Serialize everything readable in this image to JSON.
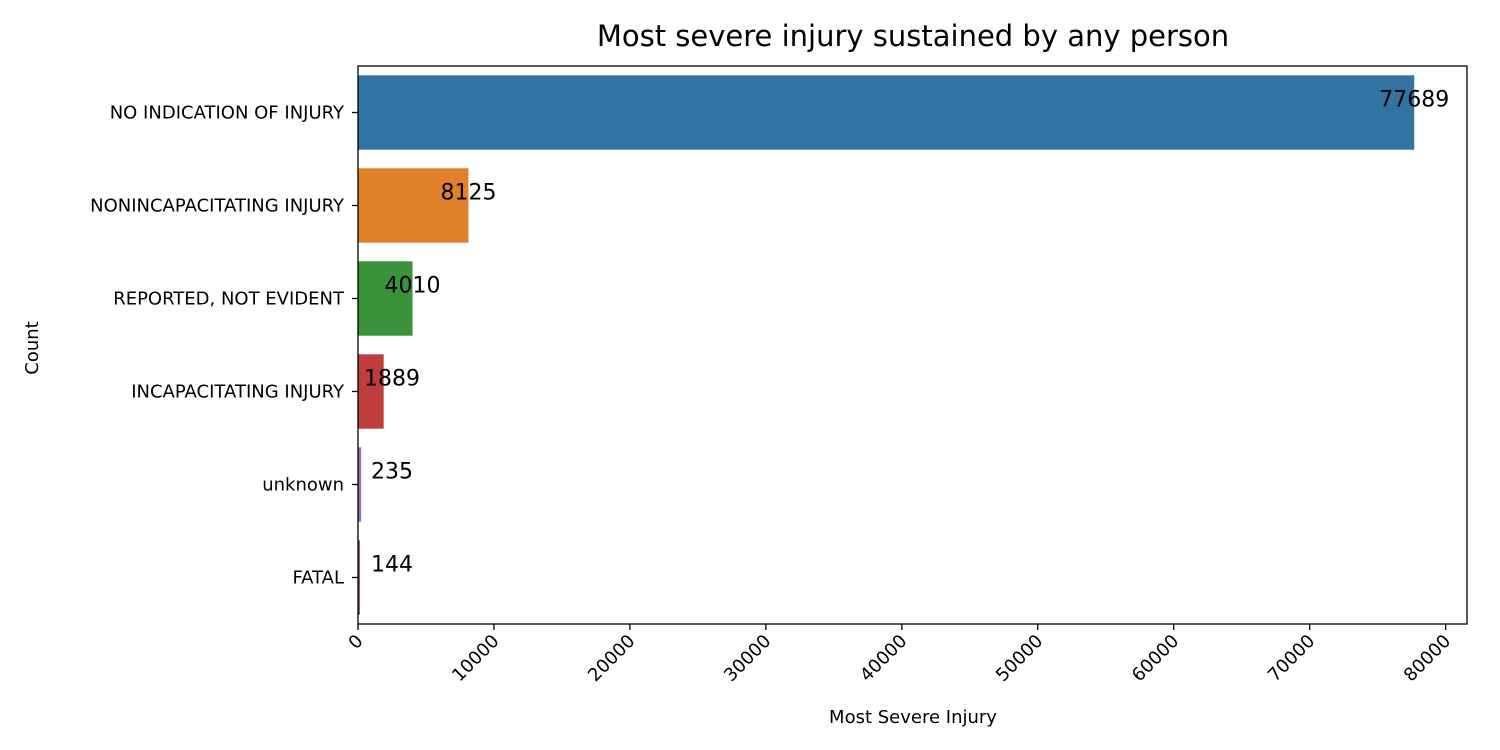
{
  "chart_data": {
    "type": "bar",
    "orientation": "horizontal",
    "title": "Most severe injury sustained by any person",
    "xlabel": "Most Severe Injury",
    "ylabel": "Count",
    "categories": [
      "NO INDICATION OF INJURY",
      "NONINCAPACITATING INJURY",
      "REPORTED, NOT EVIDENT",
      "INCAPACITATING INJURY",
      "unknown",
      "FATAL"
    ],
    "values": [
      77689,
      8125,
      4010,
      1889,
      235,
      144
    ],
    "data_labels": [
      "77689",
      "8125",
      "4010",
      "1889",
      "235",
      "144"
    ],
    "colors": [
      "#3274a1",
      "#e1812c",
      "#3a923a",
      "#c03d3e",
      "#9372b2",
      "#845b53"
    ],
    "xlim": [
      0,
      81570
    ],
    "x_ticks": [
      0,
      10000,
      20000,
      30000,
      40000,
      50000,
      60000,
      70000,
      80000
    ],
    "x_tick_labels": [
      "0",
      "10000",
      "20000",
      "30000",
      "40000",
      "50000",
      "60000",
      "70000",
      "80000"
    ],
    "x_tick_rotation": 45,
    "grid": false,
    "legend": "none"
  }
}
